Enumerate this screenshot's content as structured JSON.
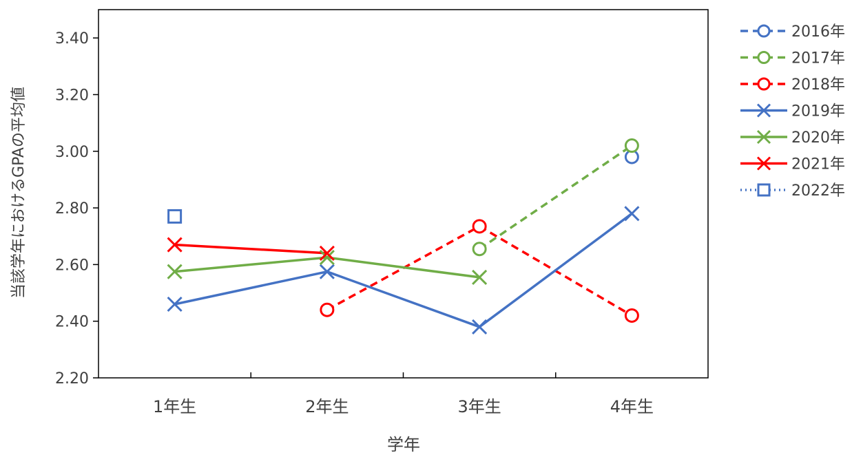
{
  "chart_data": {
    "type": "line",
    "title": "",
    "xlabel": "学年",
    "ylabel": "当該学年におけるGPAの平均値",
    "categories": [
      "1年生",
      "2年生",
      "3年生",
      "4年生"
    ],
    "ylim": [
      2.2,
      3.5
    ],
    "yticks": [
      "2.20",
      "2.40",
      "2.60",
      "2.80",
      "3.00",
      "3.20",
      "3.40"
    ],
    "grid": false,
    "legend_position": "right",
    "series": [
      {
        "name": "2016年",
        "color": "#4472C4",
        "dash": "dashed",
        "marker": "circle",
        "values": [
          null,
          null,
          null,
          2.98
        ]
      },
      {
        "name": "2017年",
        "color": "#70AD47",
        "dash": "dashed",
        "marker": "circle",
        "values": [
          null,
          null,
          2.655,
          3.02
        ]
      },
      {
        "name": "2018年",
        "color": "#FF0000",
        "dash": "dashed",
        "marker": "circle",
        "values": [
          null,
          2.44,
          2.735,
          2.42
        ]
      },
      {
        "name": "2019年",
        "color": "#4472C4",
        "dash": "solid",
        "marker": "x",
        "values": [
          2.46,
          2.575,
          2.38,
          2.78
        ]
      },
      {
        "name": "2020年",
        "color": "#70AD47",
        "dash": "solid",
        "marker": "x",
        "values": [
          2.575,
          2.625,
          2.555,
          null
        ]
      },
      {
        "name": "2021年",
        "color": "#FF0000",
        "dash": "solid",
        "marker": "x",
        "values": [
          2.67,
          2.64,
          null,
          null
        ]
      },
      {
        "name": "2022年",
        "color": "#4472C4",
        "dash": "dotted",
        "marker": "square",
        "values": [
          2.77,
          null,
          null,
          null
        ]
      }
    ]
  }
}
